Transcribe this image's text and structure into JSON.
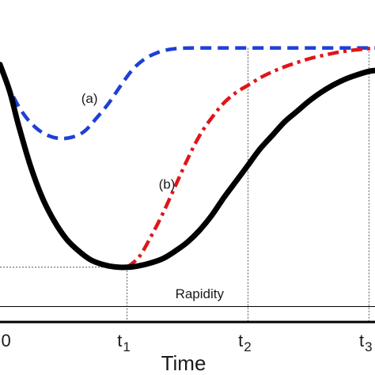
{
  "chart_data": {
    "type": "line",
    "title": "",
    "xlabel": "Time",
    "ylabel": "",
    "xlim": [
      -0.05,
      3.05
    ],
    "ylim": [
      0,
      1.04
    ],
    "x_ticks": [
      {
        "value": 0,
        "label": "0",
        "sub": ""
      },
      {
        "value": 1,
        "label": "t",
        "sub": "1"
      },
      {
        "value": 2,
        "label": "t",
        "sub": "2"
      },
      {
        "value": 3,
        "label": "t",
        "sub": "3"
      }
    ],
    "series": [
      {
        "name": "",
        "color": "#000000",
        "style": "solid",
        "points": [
          [
            -0.05,
            0.87
          ],
          [
            0.03,
            0.78
          ],
          [
            0.1,
            0.67
          ],
          [
            0.2,
            0.53
          ],
          [
            0.3,
            0.42
          ],
          [
            0.4,
            0.34
          ],
          [
            0.5,
            0.28
          ],
          [
            0.6,
            0.24
          ],
          [
            0.7,
            0.21
          ],
          [
            0.8,
            0.194
          ],
          [
            0.9,
            0.186
          ],
          [
            1.0,
            0.185
          ],
          [
            1.1,
            0.19
          ],
          [
            1.2,
            0.2
          ],
          [
            1.3,
            0.215
          ],
          [
            1.4,
            0.24
          ],
          [
            1.5,
            0.27
          ],
          [
            1.6,
            0.31
          ],
          [
            1.7,
            0.36
          ],
          [
            1.8,
            0.42
          ],
          [
            1.9,
            0.475
          ],
          [
            2.0,
            0.53
          ],
          [
            2.1,
            0.585
          ],
          [
            2.2,
            0.63
          ],
          [
            2.3,
            0.675
          ],
          [
            2.4,
            0.71
          ],
          [
            2.5,
            0.745
          ],
          [
            2.6,
            0.775
          ],
          [
            2.7,
            0.8
          ],
          [
            2.8,
            0.82
          ],
          [
            2.9,
            0.835
          ],
          [
            3.0,
            0.847
          ],
          [
            3.05,
            0.85
          ]
        ]
      },
      {
        "name": "(a)",
        "color": "#1f3fd6",
        "style": "dashed",
        "points": [
          [
            -0.05,
            0.87
          ],
          [
            0.05,
            0.77
          ],
          [
            0.15,
            0.7
          ],
          [
            0.25,
            0.655
          ],
          [
            0.35,
            0.63
          ],
          [
            0.45,
            0.62
          ],
          [
            0.55,
            0.625
          ],
          [
            0.65,
            0.645
          ],
          [
            0.75,
            0.69
          ],
          [
            0.85,
            0.74
          ],
          [
            0.95,
            0.8
          ],
          [
            1.05,
            0.855
          ],
          [
            1.15,
            0.89
          ],
          [
            1.25,
            0.91
          ],
          [
            1.35,
            0.921
          ],
          [
            1.45,
            0.925
          ],
          [
            1.6,
            0.926
          ],
          [
            2.0,
            0.926
          ],
          [
            2.5,
            0.926
          ],
          [
            3.05,
            0.926
          ]
        ]
      },
      {
        "name": "(b)",
        "color": "#e0151a",
        "style": "dashdot",
        "points": [
          [
            1.0,
            0.185
          ],
          [
            1.1,
            0.22
          ],
          [
            1.2,
            0.29
          ],
          [
            1.3,
            0.37
          ],
          [
            1.4,
            0.46
          ],
          [
            1.5,
            0.55
          ],
          [
            1.6,
            0.63
          ],
          [
            1.7,
            0.69
          ],
          [
            1.8,
            0.74
          ],
          [
            1.9,
            0.775
          ],
          [
            2.0,
            0.8
          ],
          [
            2.1,
            0.825
          ],
          [
            2.2,
            0.845
          ],
          [
            2.3,
            0.862
          ],
          [
            2.4,
            0.876
          ],
          [
            2.5,
            0.889
          ],
          [
            2.6,
            0.899
          ],
          [
            2.7,
            0.908
          ],
          [
            2.8,
            0.915
          ],
          [
            2.9,
            0.92
          ],
          [
            3.0,
            0.924
          ],
          [
            3.05,
            0.926
          ]
        ]
      }
    ],
    "annotations": {
      "a_label": {
        "text": "(a)",
        "x": 0.69,
        "y": 0.74
      },
      "b_label": {
        "text": "(b)",
        "x": 1.33,
        "y": 0.45
      },
      "rapidity": {
        "text": "Rapidity",
        "x": 1.6,
        "y": 0.08
      },
      "rapidity_line_y": 0.052,
      "min_level_y": 0.185,
      "top_level_y": 0.926
    }
  }
}
